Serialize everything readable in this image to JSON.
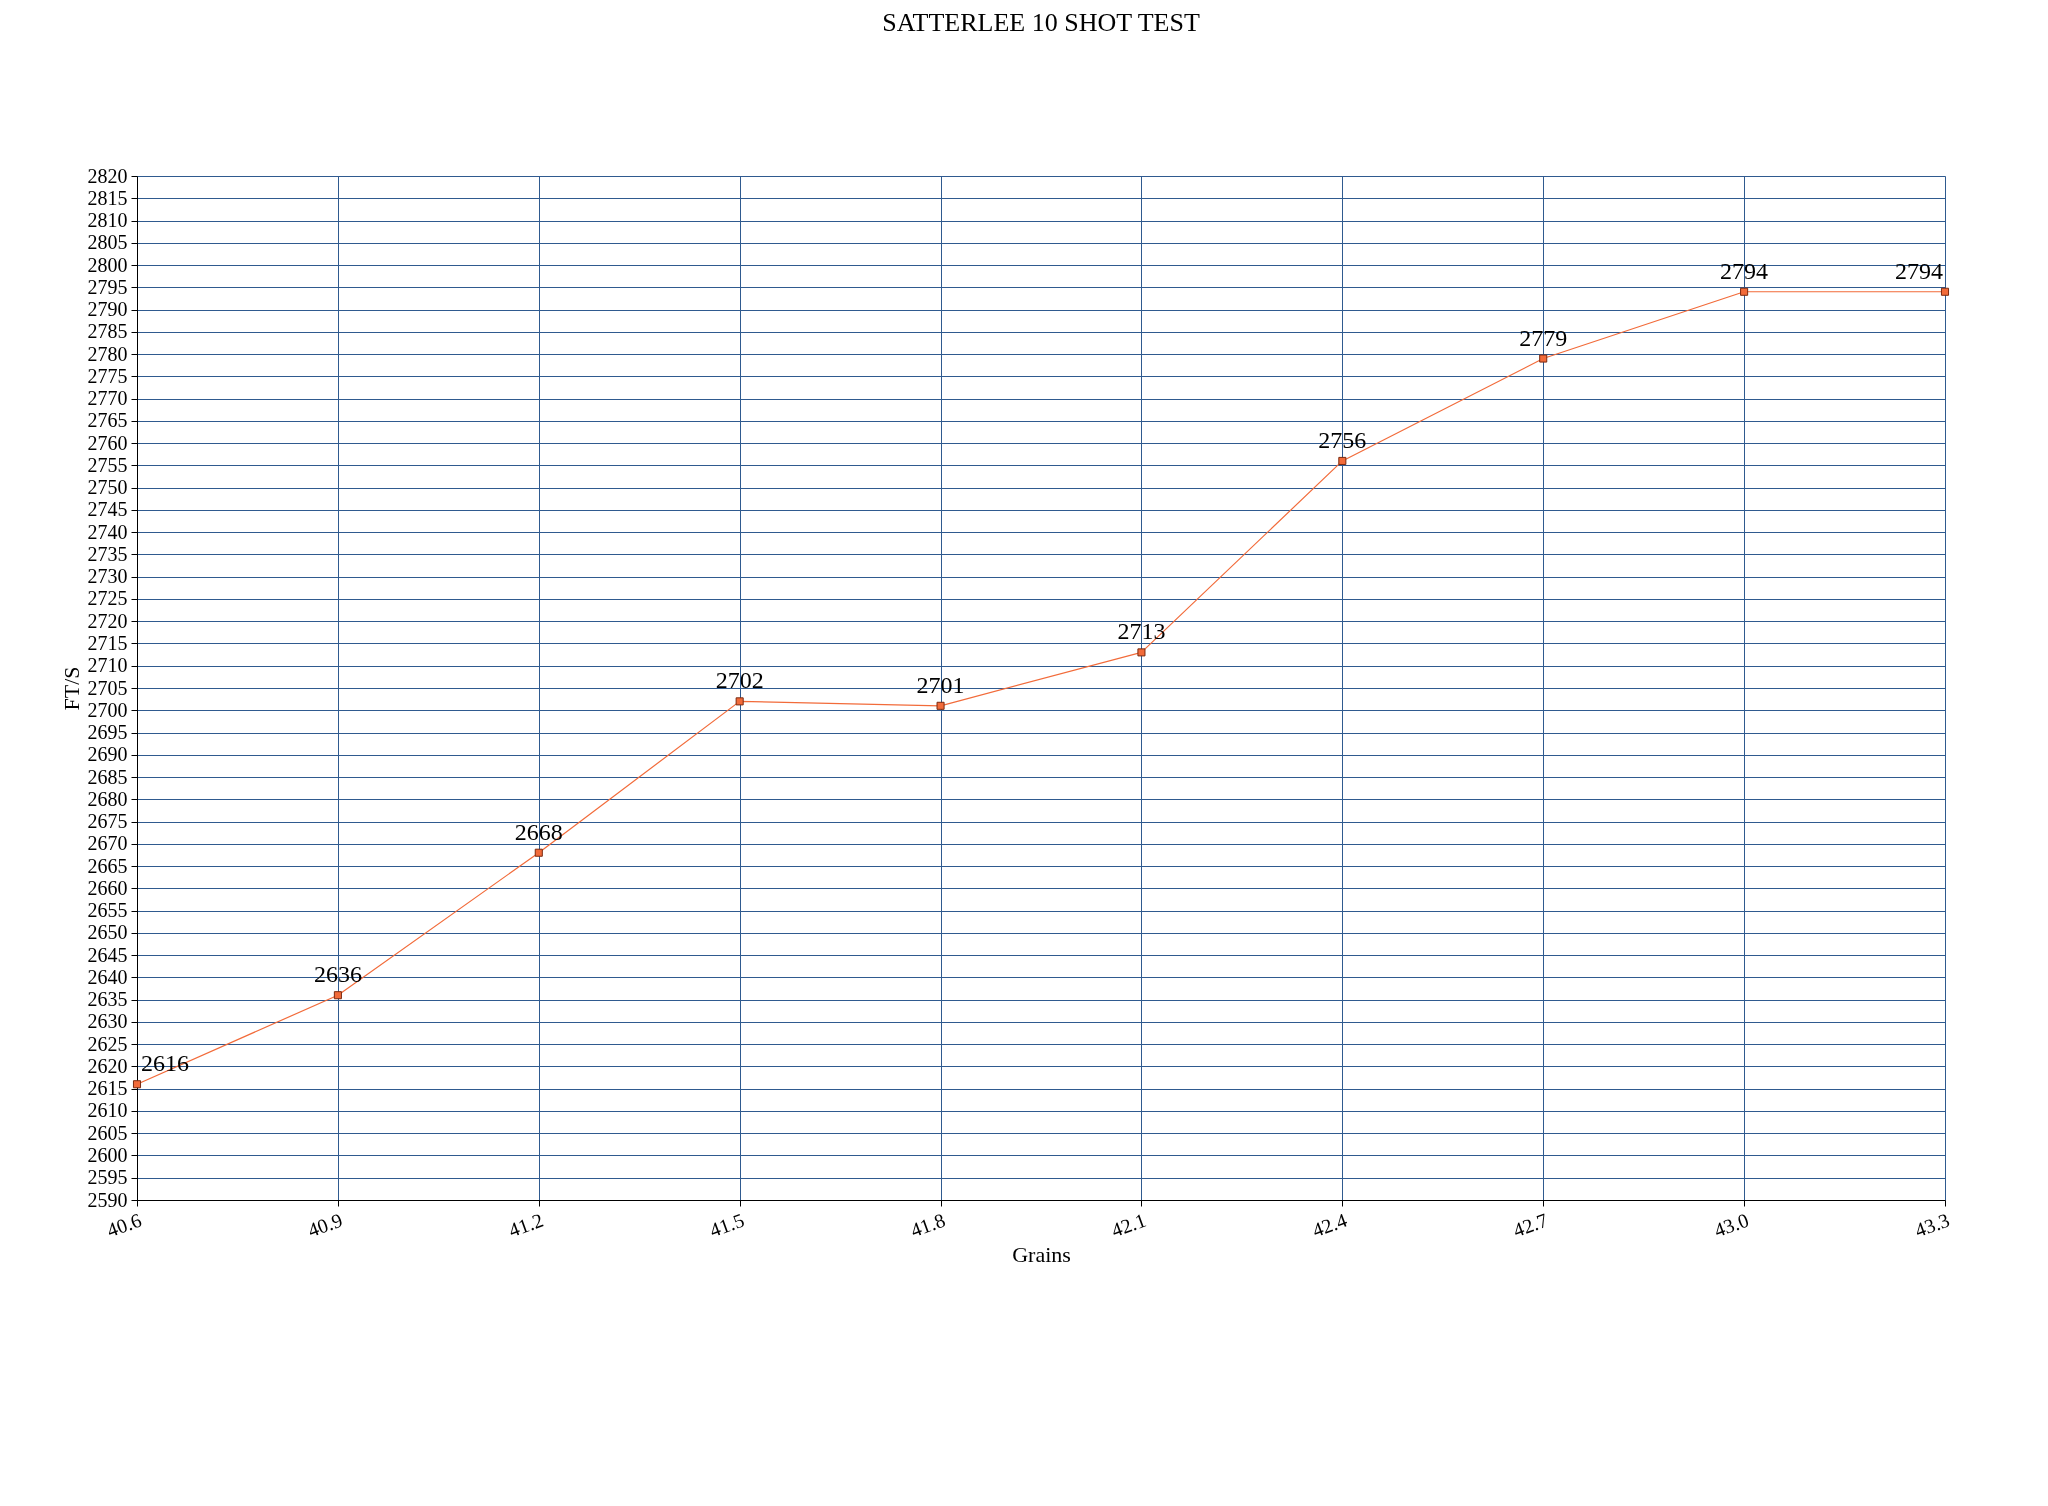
{
  "chart_data": {
    "type": "line",
    "title": "SATTERLEE 10 SHOT TEST",
    "xlabel": "Grains",
    "ylabel": "FT/S",
    "x": [
      40.6,
      40.9,
      41.2,
      41.5,
      41.8,
      42.1,
      42.4,
      42.7,
      43.0,
      43.3
    ],
    "series": [
      {
        "color": "#f26b3a",
        "values": [
          2616,
          2636,
          2668,
          2702,
          2701,
          2713,
          2756,
          2779,
          2794,
          2794
        ]
      }
    ],
    "xlim": [
      40.6,
      43.3
    ],
    "xticks": [
      40.6,
      40.9,
      41.2,
      41.5,
      41.8,
      42.1,
      42.4,
      42.7,
      {
        "value": 43,
        "label": "43.0"
      },
      43.3
    ],
    "ylim": [
      2590,
      2820
    ],
    "yticks": [
      2590,
      2595,
      2600,
      2605,
      2610,
      2615,
      2620,
      2625,
      2630,
      2635,
      2640,
      2645,
      2650,
      2655,
      2660,
      2665,
      2670,
      2675,
      2680,
      2685,
      2690,
      2695,
      2700,
      2705,
      2710,
      2715,
      2720,
      2725,
      2730,
      2735,
      2740,
      2745,
      2750,
      2755,
      2760,
      2765,
      2770,
      2775,
      2780,
      2785,
      2790,
      2795,
      2800,
      2805,
      2810,
      2815,
      2820
    ],
    "grid": true,
    "marker": "square",
    "line_style": "solid",
    "data_labels": true
  }
}
